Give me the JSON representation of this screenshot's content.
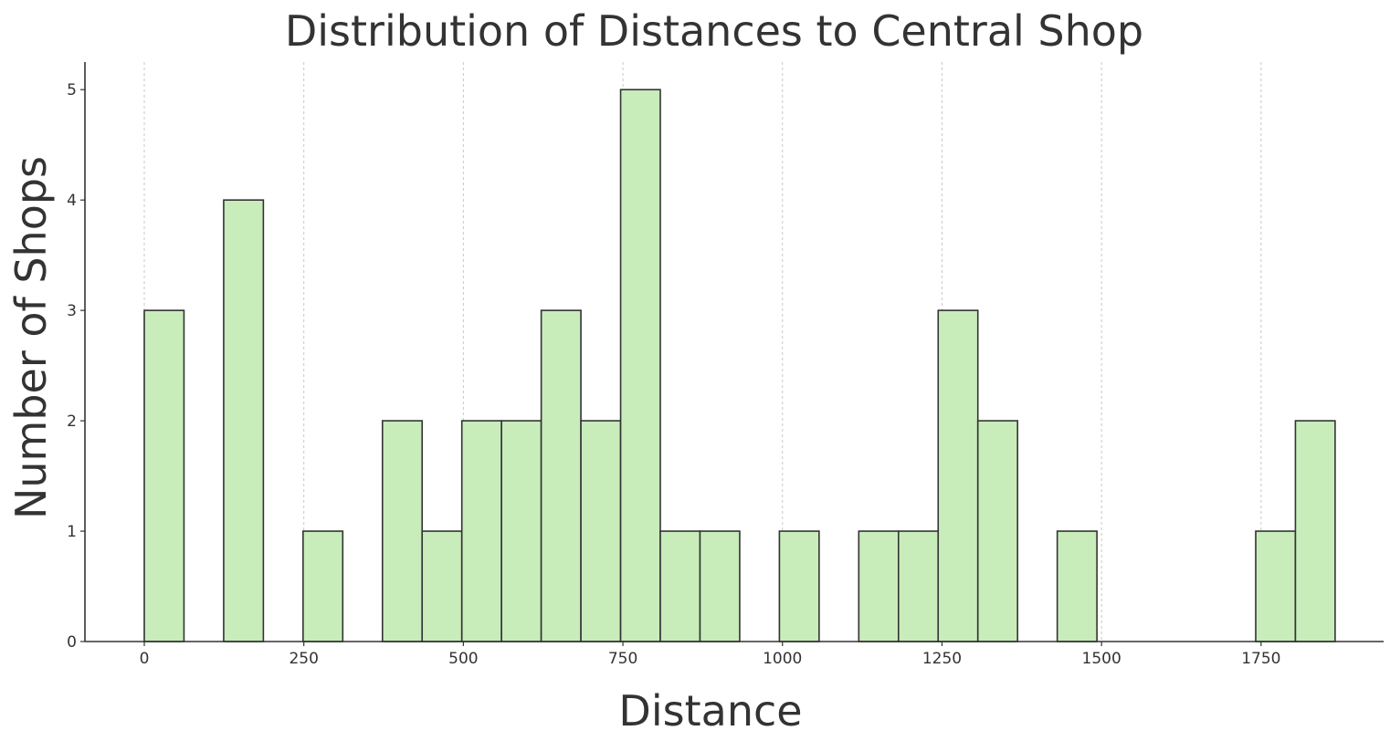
{
  "chart_data": {
    "type": "bar",
    "title": "Distribution of Distances to Central Shop",
    "xlabel": "Distance",
    "ylabel": "Number of Shops",
    "xlim": [
      -93,
      1942
    ],
    "ylim": [
      0,
      5.25
    ],
    "x_ticks": [
      0,
      250,
      500,
      750,
      1000,
      1250,
      1500,
      1750
    ],
    "y_ticks": [
      0,
      1,
      2,
      3,
      4,
      5
    ],
    "grid": {
      "x": true,
      "y": false
    },
    "bar_color": "#c8edbb",
    "edge_color": "#333333",
    "bin_width": 62.2,
    "bins": [
      {
        "start": 0.0,
        "end": 62.2,
        "count": 3
      },
      {
        "start": 62.2,
        "end": 124.4,
        "count": 0
      },
      {
        "start": 124.4,
        "end": 186.6,
        "count": 4
      },
      {
        "start": 186.6,
        "end": 248.8,
        "count": 0
      },
      {
        "start": 248.8,
        "end": 311.0,
        "count": 1
      },
      {
        "start": 311.0,
        "end": 373.2,
        "count": 0
      },
      {
        "start": 373.2,
        "end": 435.4,
        "count": 2
      },
      {
        "start": 435.4,
        "end": 497.6,
        "count": 1
      },
      {
        "start": 497.6,
        "end": 559.8,
        "count": 2
      },
      {
        "start": 559.8,
        "end": 622.0,
        "count": 2
      },
      {
        "start": 622.0,
        "end": 684.2,
        "count": 3
      },
      {
        "start": 684.2,
        "end": 746.4,
        "count": 2
      },
      {
        "start": 746.4,
        "end": 808.6,
        "count": 5
      },
      {
        "start": 808.6,
        "end": 870.8,
        "count": 1
      },
      {
        "start": 870.8,
        "end": 933.0,
        "count": 1
      },
      {
        "start": 933.0,
        "end": 995.2,
        "count": 0
      },
      {
        "start": 995.2,
        "end": 1057.4,
        "count": 1
      },
      {
        "start": 1057.4,
        "end": 1119.6,
        "count": 0
      },
      {
        "start": 1119.6,
        "end": 1181.8,
        "count": 1
      },
      {
        "start": 1181.8,
        "end": 1244.0,
        "count": 1
      },
      {
        "start": 1244.0,
        "end": 1306.2,
        "count": 3
      },
      {
        "start": 1306.2,
        "end": 1368.4,
        "count": 2
      },
      {
        "start": 1368.4,
        "end": 1430.6,
        "count": 0
      },
      {
        "start": 1430.6,
        "end": 1492.8,
        "count": 1
      },
      {
        "start": 1492.8,
        "end": 1555.0,
        "count": 0
      },
      {
        "start": 1555.0,
        "end": 1617.2,
        "count": 0
      },
      {
        "start": 1617.2,
        "end": 1679.4,
        "count": 0
      },
      {
        "start": 1679.4,
        "end": 1741.6,
        "count": 0
      },
      {
        "start": 1741.6,
        "end": 1803.8,
        "count": 1
      },
      {
        "start": 1803.8,
        "end": 1866.0,
        "count": 2
      }
    ]
  }
}
